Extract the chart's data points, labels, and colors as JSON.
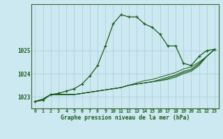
{
  "title": "Graphe pression niveau de la mer (hPa)",
  "bg_color": "#cce8f0",
  "grid_color": "#aaccdd",
  "line_color": "#1a5c1a",
  "border_color": "#336633",
  "xlim": [
    -0.5,
    23.5
  ],
  "ylim": [
    1022.5,
    1027.0
  ],
  "yticks": [
    1023,
    1024,
    1025
  ],
  "xticks": [
    0,
    1,
    2,
    3,
    4,
    5,
    6,
    7,
    8,
    9,
    10,
    11,
    12,
    13,
    14,
    15,
    16,
    17,
    18,
    19,
    20,
    21,
    22,
    23
  ],
  "main_series": [
    1022.8,
    1022.85,
    1023.1,
    1023.15,
    1023.25,
    1023.35,
    1023.55,
    1023.9,
    1024.35,
    1025.2,
    1026.15,
    1026.55,
    1026.45,
    1026.45,
    1026.15,
    1026.0,
    1025.7,
    1025.2,
    1025.2,
    1024.45,
    1024.35,
    1024.75,
    1025.0,
    1025.05
  ],
  "ref_series": [
    [
      1022.8,
      1022.9,
      1023.1,
      1023.1,
      1023.1,
      1023.1,
      1023.15,
      1023.2,
      1023.25,
      1023.3,
      1023.35,
      1023.4,
      1023.5,
      1023.6,
      1023.7,
      1023.75,
      1023.85,
      1023.95,
      1024.05,
      1024.2,
      1024.3,
      1024.5,
      1024.75,
      1025.05
    ],
    [
      1022.8,
      1022.9,
      1023.1,
      1023.1,
      1023.1,
      1023.1,
      1023.15,
      1023.2,
      1023.25,
      1023.3,
      1023.35,
      1023.4,
      1023.5,
      1023.55,
      1023.6,
      1023.65,
      1023.75,
      1023.85,
      1023.95,
      1024.1,
      1024.2,
      1024.45,
      1024.75,
      1025.05
    ],
    [
      1022.8,
      1022.9,
      1023.1,
      1023.1,
      1023.1,
      1023.1,
      1023.15,
      1023.2,
      1023.25,
      1023.3,
      1023.35,
      1023.4,
      1023.5,
      1023.55,
      1023.6,
      1023.65,
      1023.7,
      1023.8,
      1023.9,
      1024.05,
      1024.15,
      1024.4,
      1024.75,
      1025.05
    ],
    [
      1022.8,
      1022.9,
      1023.1,
      1023.1,
      1023.1,
      1023.1,
      1023.15,
      1023.2,
      1023.25,
      1023.3,
      1023.35,
      1023.4,
      1023.5,
      1023.55,
      1023.6,
      1023.65,
      1023.7,
      1023.75,
      1023.85,
      1024.0,
      1024.1,
      1024.35,
      1024.75,
      1025.05
    ]
  ]
}
